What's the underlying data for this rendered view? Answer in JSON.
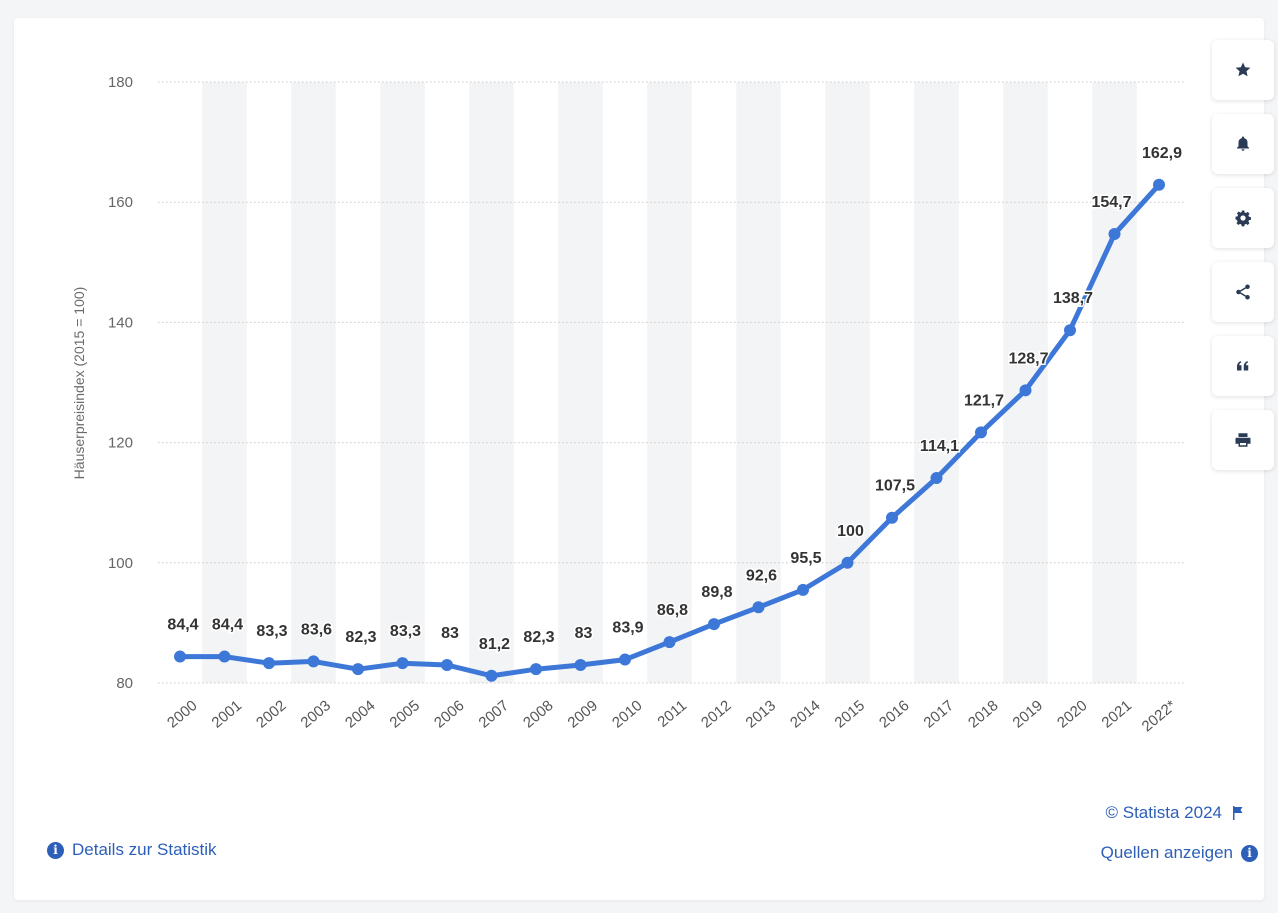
{
  "chart_data": {
    "type": "line",
    "categories": [
      "2000",
      "2001",
      "2002",
      "2003",
      "2004",
      "2005",
      "2006",
      "2007",
      "2008",
      "2009",
      "2010",
      "2011",
      "2012",
      "2013",
      "2014",
      "2015",
      "2016",
      "2017",
      "2018",
      "2019",
      "2020",
      "2021",
      "2022*"
    ],
    "values": [
      84.4,
      84.4,
      83.3,
      83.6,
      82.3,
      83.3,
      83,
      81.2,
      82.3,
      83,
      83.9,
      86.8,
      89.8,
      92.6,
      95.5,
      100,
      107.5,
      114.1,
      121.7,
      128.7,
      138.7,
      154.7,
      162.9
    ],
    "data_labels": [
      "84,4",
      "84,4",
      "83,3",
      "83,6",
      "82,3",
      "83,3",
      "83",
      "81,2",
      "82,3",
      "83",
      "83,9",
      "86,8",
      "89,8",
      "92,6",
      "95,5",
      "100",
      "107,5",
      "114,1",
      "121,7",
      "128,7",
      "138,7",
      "154,7",
      "162,9"
    ],
    "ylabel": "Häuserpreisindex (2015 = 100)",
    "xlabel": "",
    "ylim": [
      80,
      180
    ],
    "yticks": [
      80,
      100,
      120,
      140,
      160,
      180
    ],
    "grid": true,
    "line_color": "#3d78d8",
    "band_color": "#f3f4f6"
  },
  "toolbar": {
    "items": [
      {
        "name": "star-icon"
      },
      {
        "name": "bell-icon"
      },
      {
        "name": "gear-icon"
      },
      {
        "name": "share-icon"
      },
      {
        "name": "quote-icon"
      },
      {
        "name": "print-icon"
      }
    ]
  },
  "footer": {
    "details_label": "Details zur Statistik",
    "sources_label": "Quellen anzeigen",
    "copyright": "© Statista 2024"
  },
  "colors": {
    "accent": "#2d5fb8",
    "line": "#3d78d8"
  }
}
